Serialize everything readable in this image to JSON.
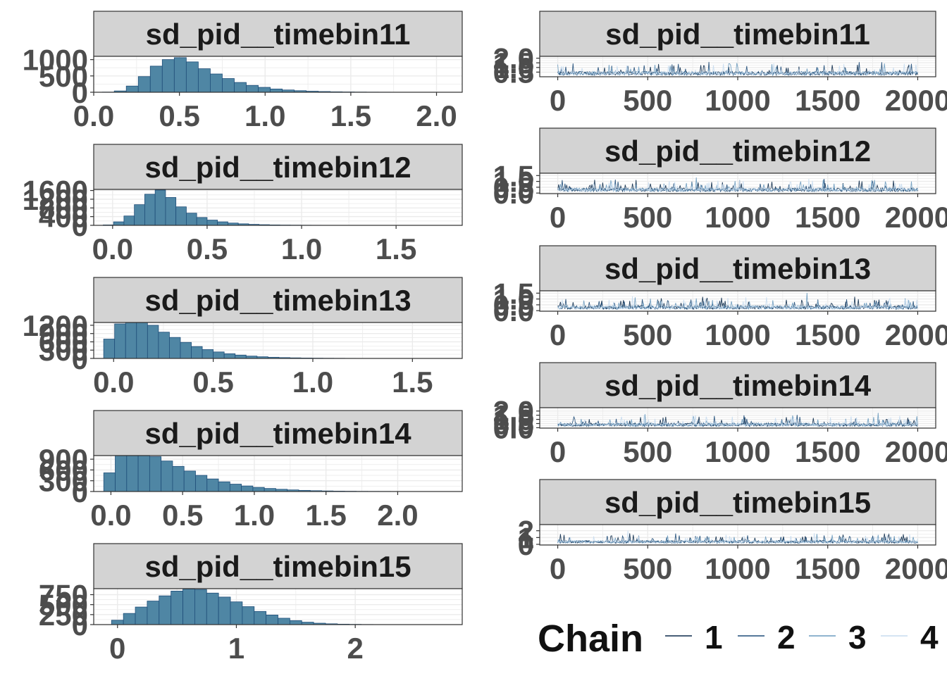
{
  "colors": {
    "strip_fill": "#d3d3d3",
    "hist_fill": "#4f86a4",
    "hist_edge": "#1f4e79",
    "grid": "#ebebeb",
    "tick_text": "#4d4d4d",
    "chain": [
      "#0b2a4a",
      "#1e4b78",
      "#6c9bbf",
      "#c6dbef"
    ]
  },
  "legend": {
    "title": "Chain",
    "labels": [
      "1",
      "2",
      "3",
      "4"
    ]
  },
  "chart_data": [
    {
      "type": "bar",
      "title": "sd_pid__timebin11",
      "xticks": [
        "0.0",
        "0.5",
        "1.0",
        "1.5",
        "2.0"
      ],
      "xtick_values": [
        0,
        0.5,
        1,
        1.5,
        2
      ],
      "xlim": [
        0,
        2.15
      ],
      "yticks": [
        "0",
        "500",
        "1000"
      ],
      "ytick_values": [
        0,
        500,
        1000
      ],
      "ylim": [
        0,
        1100
      ],
      "bin_start": 0.05,
      "bin_width": 0.07,
      "counts": [
        5,
        40,
        190,
        480,
        800,
        1000,
        1060,
        930,
        720,
        560,
        420,
        300,
        210,
        150,
        100,
        70,
        48,
        32,
        22,
        14,
        9,
        6,
        4,
        3,
        2,
        1,
        1,
        1,
        1,
        1
      ]
    },
    {
      "type": "bar",
      "title": "sd_pid__timebin12",
      "xticks": [
        "0.0",
        "0.5",
        "1.0",
        "1.5"
      ],
      "xtick_values": [
        0,
        0.5,
        1,
        1.5
      ],
      "xlim": [
        -0.1,
        1.85
      ],
      "yticks": [
        "0",
        "400",
        "800",
        "1200",
        "1600"
      ],
      "ytick_values": [
        0,
        400,
        800,
        1200,
        1600
      ],
      "ylim": [
        0,
        1650
      ],
      "bin_start": -0.05,
      "bin_width": 0.055,
      "counts": [
        20,
        160,
        430,
        950,
        1430,
        1620,
        1280,
        850,
        560,
        360,
        240,
        160,
        105,
        70,
        45,
        30,
        20,
        13,
        9,
        6,
        4,
        3,
        2,
        1,
        1,
        1,
        1,
        1,
        1,
        1
      ]
    },
    {
      "type": "bar",
      "title": "sd_pid__timebin13",
      "xticks": [
        "0.0",
        "0.5",
        "1.0",
        "1.5"
      ],
      "xtick_values": [
        0,
        0.5,
        1,
        1.5
      ],
      "xlim": [
        -0.1,
        1.75
      ],
      "yticks": [
        "0",
        "300",
        "600",
        "900",
        "1200"
      ],
      "ytick_values": [
        0,
        300,
        600,
        900,
        1200
      ],
      "ylim": [
        0,
        1300
      ],
      "bin_start": -0.05,
      "bin_width": 0.055,
      "counts": [
        700,
        1250,
        1480,
        1370,
        1200,
        950,
        760,
        580,
        430,
        320,
        235,
        170,
        120,
        85,
        60,
        42,
        30,
        21,
        15,
        10,
        7,
        5,
        3,
        2,
        2,
        1,
        1,
        1,
        1,
        1
      ]
    },
    {
      "type": "bar",
      "title": "sd_pid__timebin14",
      "xticks": [
        "0.0",
        "0.5",
        "1.0",
        "1.5",
        "2.0"
      ],
      "xtick_values": [
        0,
        0.5,
        1,
        1.5,
        2
      ],
      "xlim": [
        -0.12,
        2.45
      ],
      "yticks": [
        "0",
        "300",
        "600",
        "900"
      ],
      "ytick_values": [
        0,
        300,
        600,
        900
      ],
      "ylim": [
        0,
        1000
      ],
      "bin_start": -0.05,
      "bin_width": 0.08,
      "counts": [
        520,
        1050,
        1120,
        1080,
        970,
        850,
        700,
        570,
        450,
        350,
        270,
        205,
        155,
        115,
        85,
        62,
        45,
        32,
        23,
        16,
        11,
        8,
        5,
        4,
        3,
        2,
        1,
        1,
        1,
        1
      ]
    },
    {
      "type": "bar",
      "title": "sd_pid__timebin15",
      "xticks": [
        "0",
        "1",
        "2"
      ],
      "xtick_values": [
        0,
        1,
        2
      ],
      "xlim": [
        -0.2,
        2.9
      ],
      "yticks": [
        "0",
        "250",
        "500",
        "750"
      ],
      "ytick_values": [
        0,
        250,
        500,
        750
      ],
      "ylim": [
        0,
        900
      ],
      "bin_start": -0.05,
      "bin_width": 0.1,
      "counts": [
        110,
        280,
        440,
        590,
        720,
        840,
        890,
        880,
        790,
        690,
        570,
        450,
        330,
        240,
        160,
        100,
        60,
        35,
        20,
        11,
        6,
        3,
        2,
        1,
        1,
        1,
        1,
        1,
        1,
        1
      ]
    },
    {
      "type": "line",
      "title": "sd_pid__timebin11",
      "xticks": [
        "0",
        "500",
        "1000",
        "1500",
        "2000"
      ],
      "xtick_values": [
        0,
        500,
        1000,
        1500,
        2000
      ],
      "xlim": [
        -100,
        2100
      ],
      "yticks": [
        "0.5",
        "1.0",
        "1.5",
        "2.0"
      ],
      "ytick_values": [
        0.5,
        1.0,
        1.5,
        2.0
      ],
      "ylim": [
        0,
        2.2
      ],
      "iterations": 2000,
      "chains": 4
    },
    {
      "type": "line",
      "title": "sd_pid__timebin12",
      "xticks": [
        "0",
        "500",
        "1000",
        "1500",
        "2000"
      ],
      "xtick_values": [
        0,
        500,
        1000,
        1500,
        2000
      ],
      "xlim": [
        -100,
        2100
      ],
      "yticks": [
        "0.0",
        "0.5",
        "1.0",
        "1.5"
      ],
      "ytick_values": [
        0,
        0.5,
        1.0,
        1.5
      ],
      "ylim": [
        -0.05,
        1.7
      ],
      "iterations": 2000,
      "chains": 4
    },
    {
      "type": "line",
      "title": "sd_pid__timebin13",
      "xticks": [
        "0",
        "500",
        "1000",
        "1500",
        "2000"
      ],
      "xtick_values": [
        0,
        500,
        1000,
        1500,
        2000
      ],
      "xlim": [
        -100,
        2100
      ],
      "yticks": [
        "0.0",
        "0.5",
        "1.0",
        "1.5"
      ],
      "ytick_values": [
        0,
        0.5,
        1.0,
        1.5
      ],
      "ylim": [
        -0.05,
        1.7
      ],
      "iterations": 2000,
      "chains": 4
    },
    {
      "type": "line",
      "title": "sd_pid__timebin14",
      "xticks": [
        "0",
        "500",
        "1000",
        "1500",
        "2000"
      ],
      "xtick_values": [
        0,
        500,
        1000,
        1500,
        2000
      ],
      "xlim": [
        -100,
        2100
      ],
      "yticks": [
        "0.0",
        "0.5",
        "1.0",
        "1.5",
        "2.0"
      ],
      "ytick_values": [
        0,
        0.5,
        1.0,
        1.5,
        2.0
      ],
      "ylim": [
        -0.05,
        2.4
      ],
      "iterations": 2000,
      "chains": 4
    },
    {
      "type": "line",
      "title": "sd_pid__timebin15",
      "xticks": [
        "0",
        "500",
        "1000",
        "1500",
        "2000"
      ],
      "xtick_values": [
        0,
        500,
        1000,
        1500,
        2000
      ],
      "xlim": [
        -100,
        2100
      ],
      "yticks": [
        "0",
        "1",
        "2"
      ],
      "ytick_values": [
        0,
        1,
        2
      ],
      "ylim": [
        -0.1,
        2.9
      ],
      "iterations": 2000,
      "chains": 4
    }
  ]
}
